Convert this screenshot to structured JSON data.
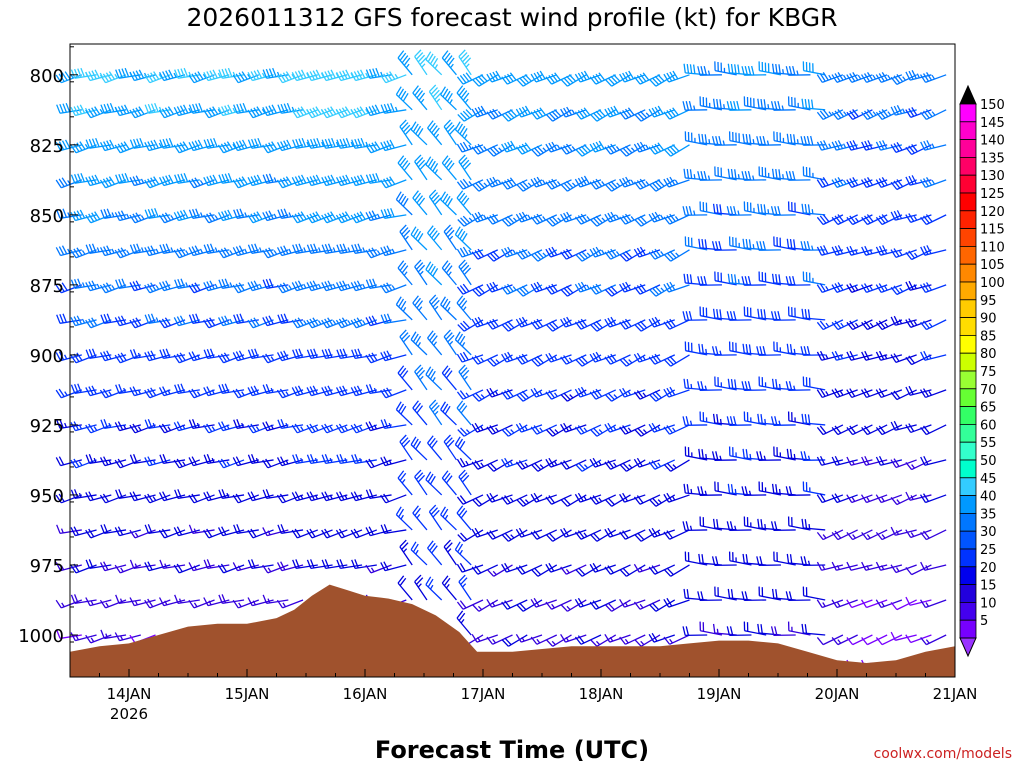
{
  "chart_data": {
    "type": "wind-barb-profile",
    "title": "2026011312 GFS forecast wind profile (kt) for KBGR",
    "xlabel": "Forecast Time (UTC)",
    "ylabel": "",
    "credit": "coolwx.com/models",
    "x_ticks": [
      {
        "label": "14JAN",
        "sub": "2026",
        "day": 14
      },
      {
        "label": "15JAN",
        "sub": "",
        "day": 15
      },
      {
        "label": "16JAN",
        "sub": "",
        "day": 16
      },
      {
        "label": "17JAN",
        "sub": "",
        "day": 17
      },
      {
        "label": "18JAN",
        "sub": "",
        "day": 18
      },
      {
        "label": "19JAN",
        "sub": "",
        "day": 19
      },
      {
        "label": "20JAN",
        "sub": "",
        "day": 20
      },
      {
        "label": "21JAN",
        "sub": "",
        "day": 21
      }
    ],
    "xlim_days": [
      13.5,
      21.0
    ],
    "y_ticks": [
      {
        "label": "800",
        "value": 800
      },
      {
        "label": "825",
        "value": 825
      },
      {
        "label": "850",
        "value": 850
      },
      {
        "label": "875",
        "value": 875
      },
      {
        "label": "900",
        "value": 900
      },
      {
        "label": "925",
        "value": 925
      },
      {
        "label": "950",
        "value": 950
      },
      {
        "label": "975",
        "value": 975
      },
      {
        "label": "1000",
        "value": 1000
      }
    ],
    "ylim_hpa": [
      789,
      1015
    ],
    "barb_levels_hpa": [
      800,
      812.5,
      825,
      837.5,
      850,
      862.5,
      875,
      887.5,
      900,
      912.5,
      925,
      937.5,
      950,
      962.5,
      975,
      987.5,
      1000,
      1010
    ],
    "wind_segments": [
      {
        "start_day": 13.6,
        "end_day": 16.35,
        "speed_top_kt": 45,
        "speed_bottom_kt": 12,
        "direction_deg": 255
      },
      {
        "start_day": 16.4,
        "end_day": 16.95,
        "speed_top_kt": 45,
        "speed_bottom_kt": 22,
        "direction_deg": 320
      },
      {
        "start_day": 17.0,
        "end_day": 18.85,
        "speed_top_kt": 40,
        "speed_bottom_kt": 15,
        "direction_deg": 245
      },
      {
        "start_day": 18.9,
        "end_day": 19.95,
        "speed_top_kt": 38,
        "speed_bottom_kt": 18,
        "direction_deg": 275
      },
      {
        "start_day": 20.05,
        "end_day": 21.0,
        "speed_top_kt": 35,
        "speed_bottom_kt": 10,
        "direction_deg": 250
      }
    ],
    "surface_pressure": {
      "label": "terrain",
      "color": "#A0522D",
      "points": [
        {
          "day": 13.5,
          "hpa": 1006
        },
        {
          "day": 13.75,
          "hpa": 1004
        },
        {
          "day": 14.0,
          "hpa": 1003
        },
        {
          "day": 14.25,
          "hpa": 1000
        },
        {
          "day": 14.5,
          "hpa": 997
        },
        {
          "day": 14.75,
          "hpa": 996
        },
        {
          "day": 15.0,
          "hpa": 996
        },
        {
          "day": 15.25,
          "hpa": 994
        },
        {
          "day": 15.4,
          "hpa": 991
        },
        {
          "day": 15.55,
          "hpa": 986
        },
        {
          "day": 15.7,
          "hpa": 982
        },
        {
          "day": 15.85,
          "hpa": 984
        },
        {
          "day": 16.0,
          "hpa": 986
        },
        {
          "day": 16.2,
          "hpa": 987
        },
        {
          "day": 16.4,
          "hpa": 989
        },
        {
          "day": 16.6,
          "hpa": 993
        },
        {
          "day": 16.8,
          "hpa": 999
        },
        {
          "day": 16.95,
          "hpa": 1006
        },
        {
          "day": 17.25,
          "hpa": 1006
        },
        {
          "day": 17.5,
          "hpa": 1005
        },
        {
          "day": 17.75,
          "hpa": 1004
        },
        {
          "day": 18.25,
          "hpa": 1004
        },
        {
          "day": 18.5,
          "hpa": 1004
        },
        {
          "day": 18.75,
          "hpa": 1003
        },
        {
          "day": 19.0,
          "hpa": 1002
        },
        {
          "day": 19.25,
          "hpa": 1002
        },
        {
          "day": 19.5,
          "hpa": 1003
        },
        {
          "day": 19.75,
          "hpa": 1006
        },
        {
          "day": 20.0,
          "hpa": 1009
        },
        {
          "day": 20.25,
          "hpa": 1010
        },
        {
          "day": 20.5,
          "hpa": 1009
        },
        {
          "day": 20.75,
          "hpa": 1006
        },
        {
          "day": 21.0,
          "hpa": 1004
        }
      ]
    },
    "colorbar": {
      "labels": [
        "150",
        "145",
        "140",
        "135",
        "130",
        "125",
        "120",
        "115",
        "110",
        "105",
        "100",
        "95",
        "90",
        "85",
        "80",
        "75",
        "70",
        "65",
        "60",
        "55",
        "50",
        "45",
        "40",
        "35",
        "30",
        "25",
        "20",
        "15",
        "10",
        "5"
      ],
      "colors": [
        "#ff00ff",
        "#ff00cc",
        "#ff0099",
        "#ff0066",
        "#ff0033",
        "#ff0000",
        "#ff2200",
        "#ff4400",
        "#ff6600",
        "#ff8800",
        "#ffaa00",
        "#ffcc00",
        "#ffdd00",
        "#ffff00",
        "#ccff00",
        "#99ff33",
        "#66ff33",
        "#33ff66",
        "#33ff99",
        "#33ffcc",
        "#00ffcc",
        "#33ccff",
        "#0099ff",
        "#0077ff",
        "#0055ff",
        "#0033ff",
        "#0000ee",
        "#2200dd",
        "#4400ee",
        "#7700ff"
      ]
    }
  }
}
